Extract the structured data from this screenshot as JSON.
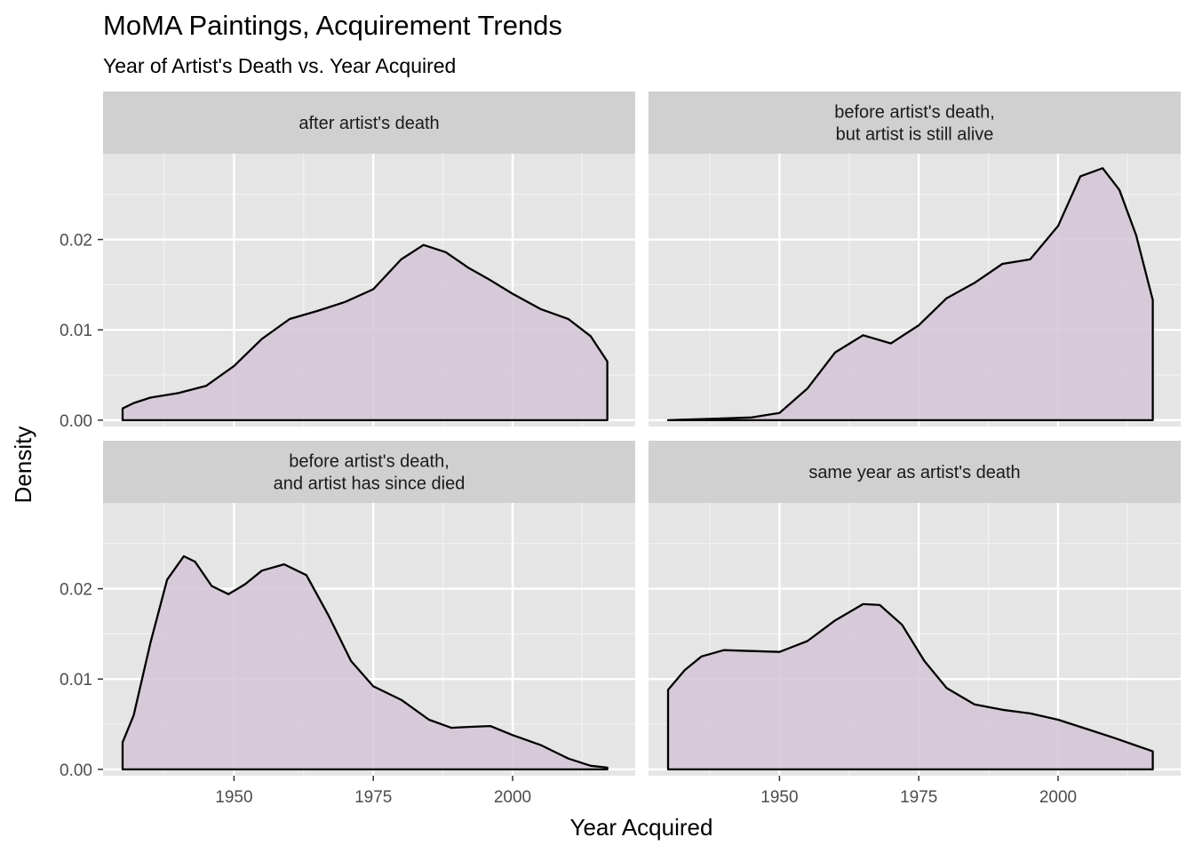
{
  "chart_data": {
    "type": "area",
    "title": "MoMA Paintings, Acquirement Trends",
    "subtitle": "Year of Artist's Death vs. Year Acquired",
    "xlabel": "Year Acquired",
    "ylabel": "Density",
    "xlim": [
      1926.5,
      2022
    ],
    "ylim": [
      -0.0007,
      0.0295
    ],
    "x_ticks": [
      1950,
      1975,
      2000
    ],
    "x_tick_labels": [
      "1950",
      "1975",
      "2000"
    ],
    "y_ticks": [
      0,
      0.01,
      0.02
    ],
    "y_tick_labels": [
      "0.00",
      "0.01",
      "0.02"
    ],
    "grid": true,
    "fill_color": "#d5c5d6",
    "line_color": "#000000",
    "panel_background": "#e5e5e5",
    "strip_background": "#d0d0d0",
    "facets": [
      {
        "strip": [
          "after artist's death"
        ],
        "x": [
          1930,
          1932,
          1935,
          1940,
          1945,
          1950,
          1955,
          1960,
          1965,
          1970,
          1975,
          1980,
          1984,
          1988,
          1992,
          1996,
          2000,
          2005,
          2010,
          2014,
          2017
        ],
        "y": [
          0.0013,
          0.0019,
          0.0025,
          0.003,
          0.0038,
          0.006,
          0.009,
          0.0112,
          0.0121,
          0.0131,
          0.0145,
          0.0178,
          0.0194,
          0.0186,
          0.0169,
          0.0155,
          0.014,
          0.0123,
          0.0112,
          0.0093,
          0.0065
        ]
      },
      {
        "strip": [
          "before artist's death,",
          "but artist is still alive"
        ],
        "x": [
          1930,
          1935,
          1940,
          1945,
          1950,
          1955,
          1960,
          1965,
          1970,
          1975,
          1980,
          1985,
          1990,
          1995,
          2000,
          2004,
          2008,
          2011,
          2014,
          2017
        ],
        "y": [
          0.0,
          0.0001,
          0.0002,
          0.0003,
          0.0008,
          0.0035,
          0.0075,
          0.0094,
          0.0085,
          0.0105,
          0.0135,
          0.0152,
          0.0173,
          0.0178,
          0.0215,
          0.027,
          0.0279,
          0.0255,
          0.0205,
          0.0133
        ]
      },
      {
        "strip": [
          "before artist's death,",
          "and artist has since died"
        ],
        "x": [
          1930,
          1932,
          1935,
          1938,
          1941,
          1943,
          1946,
          1949,
          1952,
          1955,
          1959,
          1963,
          1967,
          1971,
          1975,
          1980,
          1985,
          1989,
          1992,
          1996,
          2000,
          2005,
          2010,
          2014,
          2017
        ],
        "y": [
          0.003,
          0.006,
          0.014,
          0.021,
          0.0236,
          0.023,
          0.0203,
          0.0194,
          0.0205,
          0.022,
          0.0227,
          0.0215,
          0.017,
          0.012,
          0.0092,
          0.0077,
          0.0055,
          0.0046,
          0.0047,
          0.0048,
          0.0038,
          0.0027,
          0.0012,
          0.0004,
          0.0002
        ]
      },
      {
        "strip": [
          "same year as artist's death"
        ],
        "x": [
          1930,
          1933,
          1936,
          1940,
          1945,
          1950,
          1955,
          1960,
          1965,
          1968,
          1972,
          1976,
          1980,
          1985,
          1990,
          1995,
          2000,
          2005,
          2010,
          2017
        ],
        "y": [
          0.0088,
          0.011,
          0.0125,
          0.0132,
          0.0131,
          0.013,
          0.0142,
          0.0165,
          0.0183,
          0.0182,
          0.016,
          0.012,
          0.009,
          0.0072,
          0.0066,
          0.0062,
          0.0055,
          0.0045,
          0.0035,
          0.002
        ]
      }
    ]
  }
}
